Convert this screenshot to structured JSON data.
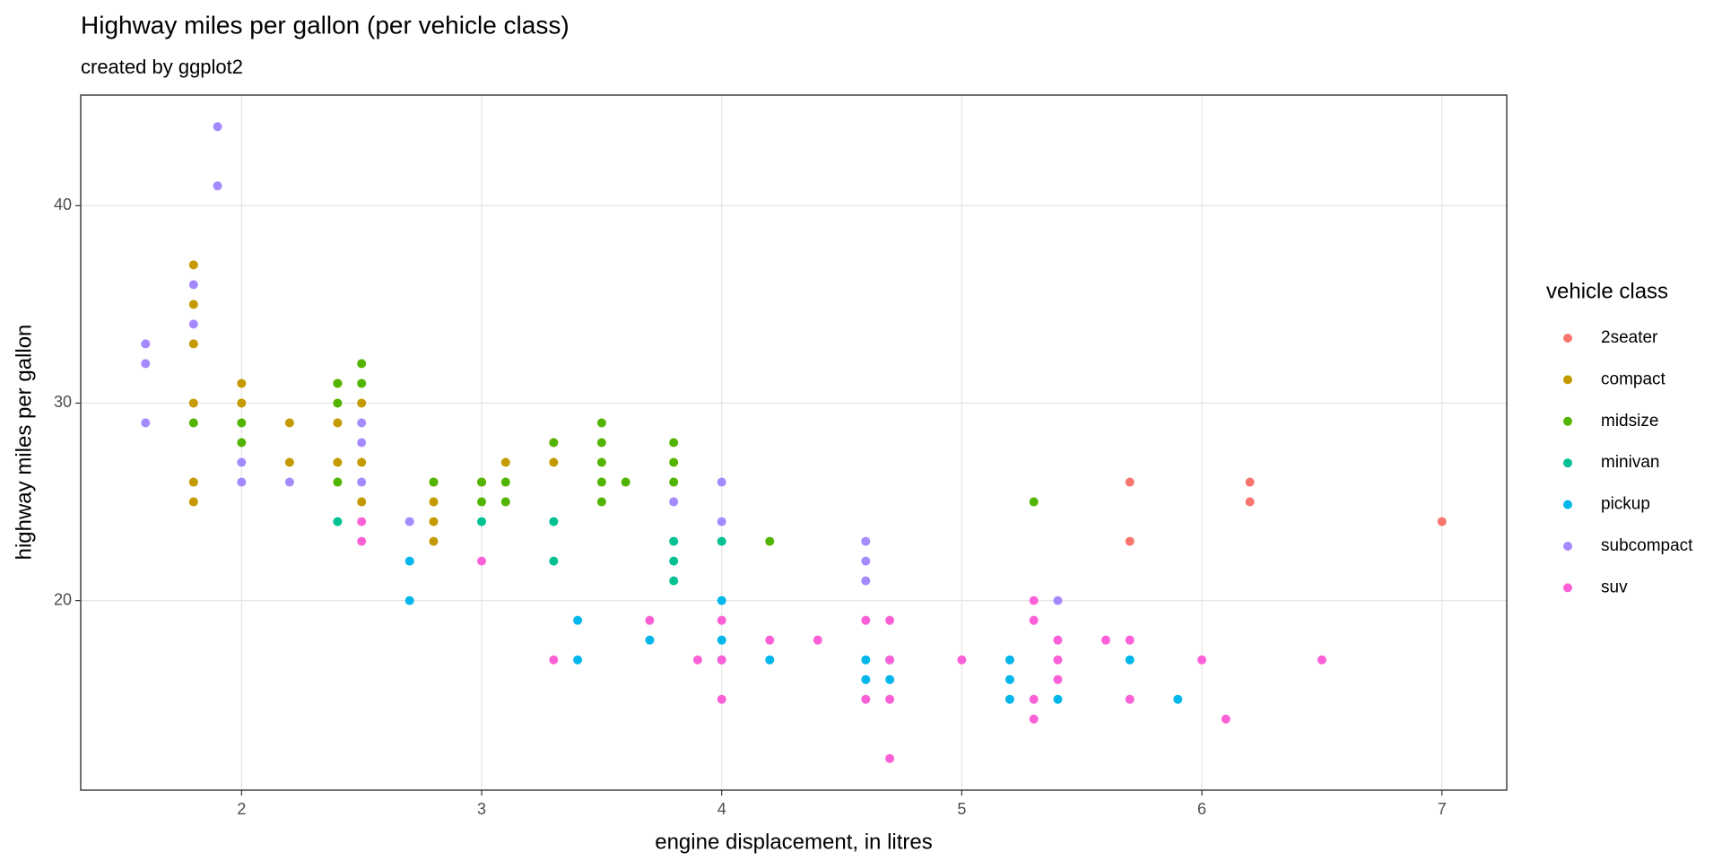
{
  "chart_data": {
    "type": "scatter",
    "title": "Highway miles per gallon (per vehicle class)",
    "subtitle": "created by ggplot2",
    "x_label": "engine displacement, in litres",
    "y_label": "highway miles per gallon",
    "legend_title": "vehicle class",
    "legend_position": "right",
    "grid": true,
    "xlim": [
      1.33,
      7.27
    ],
    "ylim": [
      10.4,
      45.6
    ],
    "xticks": [
      2,
      3,
      4,
      5,
      6,
      7
    ],
    "yticks": [
      20,
      30,
      40
    ],
    "series": [
      {
        "name": "2seater",
        "color": "#F8766D",
        "x": [
          5.7,
          5.7,
          6.2,
          6.2,
          7
        ],
        "y": [
          26,
          23,
          26,
          25,
          24
        ]
      },
      {
        "name": "compact",
        "color": "#C49A00",
        "x": [
          1.8,
          1.8,
          1.8,
          1.8,
          1.8,
          1.8,
          2,
          2,
          2.2,
          2.2,
          2.4,
          2.4,
          2.4,
          2.5,
          2.5,
          2.5,
          2.8,
          2.8,
          2.8,
          2.8,
          3,
          3.1,
          3.3,
          3.3
        ],
        "y": [
          37,
          35,
          33,
          30,
          26,
          25,
          31,
          30,
          29,
          27,
          31,
          29,
          27,
          30,
          27,
          25,
          26,
          25,
          24,
          23,
          26,
          27,
          28,
          27
        ]
      },
      {
        "name": "midsize",
        "color": "#53B400",
        "x": [
          1.8,
          2,
          2,
          2.4,
          2.4,
          2.4,
          2.5,
          2.5,
          2.8,
          3,
          3,
          3.1,
          3.1,
          3.3,
          3.5,
          3.5,
          3.5,
          3.5,
          3.5,
          3.6,
          3.8,
          3.8,
          3.8,
          4.2,
          5.3
        ],
        "y": [
          29,
          29,
          28,
          31,
          30,
          26,
          32,
          31,
          26,
          26,
          25,
          26,
          25,
          28,
          29,
          28,
          27,
          26,
          25,
          26,
          28,
          27,
          26,
          23,
          25
        ]
      },
      {
        "name": "minivan",
        "color": "#00C094",
        "x": [
          2.4,
          3,
          3.3,
          3.3,
          3.8,
          3.8,
          3.8,
          4
        ],
        "y": [
          24,
          24,
          24,
          22,
          23,
          22,
          21,
          23
        ]
      },
      {
        "name": "pickup",
        "color": "#00B6EB",
        "x": [
          2.7,
          2.7,
          3.4,
          3.4,
          3.7,
          4,
          4,
          4,
          4.2,
          4.6,
          4.6,
          4.7,
          4.7,
          5.2,
          5.2,
          5.2,
          5.4,
          5.7,
          5.9
        ],
        "y": [
          22,
          20,
          19,
          17,
          18,
          20,
          18,
          17,
          17,
          17,
          16,
          17,
          16,
          17,
          16,
          15,
          15,
          17,
          15
        ]
      },
      {
        "name": "subcompact",
        "color": "#A58AFF",
        "x": [
          1.6,
          1.6,
          1.6,
          1.8,
          1.8,
          1.9,
          1.9,
          2,
          2,
          2.2,
          2.5,
          2.5,
          2.5,
          2.7,
          3.8,
          4,
          4,
          4.6,
          4.6,
          4.6,
          5.4
        ],
        "y": [
          33,
          32,
          29,
          36,
          34,
          44,
          41,
          27,
          26,
          26,
          29,
          28,
          26,
          24,
          25,
          26,
          24,
          23,
          22,
          21,
          20
        ]
      },
      {
        "name": "suv",
        "color": "#FB61D7",
        "x": [
          2.5,
          2.5,
          3,
          3.3,
          3.7,
          3.9,
          4,
          4,
          4,
          4.2,
          4.4,
          4.6,
          4.6,
          4.7,
          4.7,
          4.7,
          4.7,
          5,
          5.3,
          5.3,
          5.3,
          5.3,
          5.4,
          5.4,
          5.4,
          5.6,
          5.7,
          5.7,
          6,
          6.1,
          6.5
        ],
        "y": [
          24,
          23,
          22,
          17,
          19,
          17,
          19,
          17,
          15,
          18,
          18,
          19,
          15,
          19,
          17,
          15,
          12,
          17,
          20,
          19,
          15,
          14,
          18,
          17,
          16,
          18,
          18,
          15,
          17,
          14,
          17
        ]
      }
    ]
  }
}
